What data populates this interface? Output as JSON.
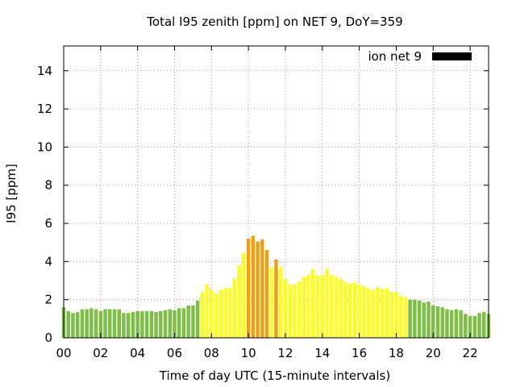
{
  "chart_data": {
    "type": "bar",
    "title": "Total I95 zenith [ppm] on NET 9, DoY=359",
    "xlabel": "Time of day UTC (15-minute intervals)",
    "ylabel": "I95 [ppm]",
    "xlim": [
      0,
      23
    ],
    "ylim": [
      0,
      15.3
    ],
    "x_ticks": [
      "00",
      "02",
      "04",
      "06",
      "08",
      "10",
      "12",
      "14",
      "16",
      "18",
      "20",
      "22"
    ],
    "x_tick_values": [
      0,
      2,
      4,
      6,
      8,
      10,
      12,
      14,
      16,
      18,
      20,
      22
    ],
    "y_ticks": [
      "0",
      "2",
      "4",
      "6",
      "8",
      "10",
      "12",
      "14"
    ],
    "y_tick_values": [
      0,
      2,
      4,
      6,
      8,
      10,
      12,
      14
    ],
    "grid": true,
    "legend": {
      "label": "ion net 9",
      "placement": "top-right",
      "color": "#000000"
    },
    "interval_hours": 0.25,
    "colors": {
      "low": "#7dbf45",
      "moderate": "#ffff1e",
      "high": "#f0a010"
    },
    "values": [
      1.6,
      1.4,
      1.3,
      1.35,
      1.5,
      1.5,
      1.55,
      1.5,
      1.4,
      1.5,
      1.5,
      1.5,
      1.5,
      1.3,
      1.3,
      1.35,
      1.4,
      1.4,
      1.4,
      1.4,
      1.35,
      1.4,
      1.45,
      1.5,
      1.45,
      1.55,
      1.55,
      1.7,
      1.7,
      1.95,
      2.4,
      2.8,
      2.5,
      2.3,
      2.5,
      2.6,
      2.6,
      3.1,
      3.8,
      4.45,
      5.2,
      5.35,
      5.05,
      5.15,
      4.6,
      3.7,
      4.1,
      3.7,
      3.1,
      2.8,
      2.8,
      2.95,
      3.2,
      3.3,
      3.6,
      3.25,
      3.3,
      3.6,
      3.3,
      3.2,
      3.1,
      2.9,
      2.85,
      2.9,
      2.8,
      2.7,
      2.6,
      2.5,
      2.65,
      2.55,
      2.6,
      2.4,
      2.4,
      2.2,
      2.15,
      2.0,
      2.0,
      1.95,
      1.85,
      1.9,
      1.7,
      1.65,
      1.6,
      1.5,
      1.45,
      1.5,
      1.45,
      1.25,
      1.15,
      1.15,
      1.3,
      1.35,
      1.25
    ],
    "levels": [
      "low",
      "low",
      "low",
      "low",
      "low",
      "low",
      "low",
      "low",
      "low",
      "low",
      "low",
      "low",
      "low",
      "low",
      "low",
      "low",
      "low",
      "low",
      "low",
      "low",
      "low",
      "low",
      "low",
      "low",
      "low",
      "low",
      "low",
      "low",
      "low",
      "low",
      "moderate",
      "moderate",
      "moderate",
      "moderate",
      "moderate",
      "moderate",
      "moderate",
      "moderate",
      "moderate",
      "moderate",
      "high",
      "high",
      "high",
      "high",
      "high",
      "moderate",
      "high",
      "moderate",
      "moderate",
      "moderate",
      "moderate",
      "moderate",
      "moderate",
      "moderate",
      "moderate",
      "moderate",
      "moderate",
      "moderate",
      "moderate",
      "moderate",
      "moderate",
      "moderate",
      "moderate",
      "moderate",
      "moderate",
      "moderate",
      "moderate",
      "moderate",
      "moderate",
      "moderate",
      "moderate",
      "moderate",
      "moderate",
      "moderate",
      "moderate",
      "low",
      "low",
      "low",
      "low",
      "low",
      "low",
      "low",
      "low",
      "low",
      "low",
      "low",
      "low",
      "low",
      "low",
      "low",
      "low",
      "low",
      "low"
    ]
  }
}
